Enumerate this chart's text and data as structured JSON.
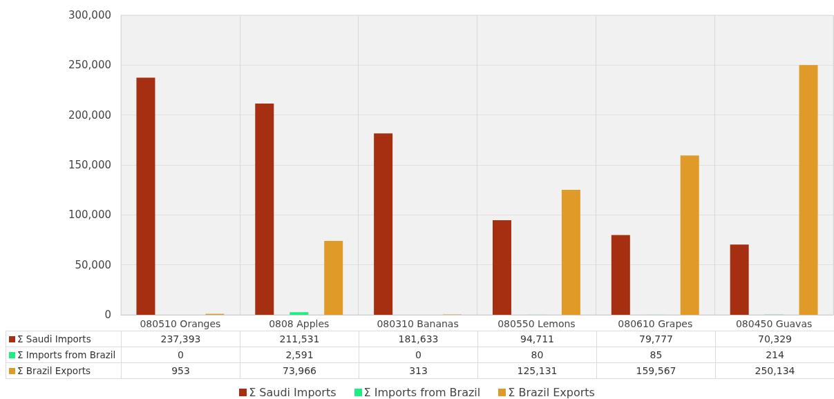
{
  "chart_data": {
    "type": "bar",
    "categories": [
      "080510 Oranges",
      "0808 Apples",
      "080310 Bananas",
      "080550 Lemons",
      "080610 Grapes",
      "080450 Guavas"
    ],
    "series": [
      {
        "name": "Σ Saudi Imports",
        "color": "#a52f10",
        "values": [
          237393,
          211531,
          181633,
          94711,
          79777,
          70329
        ],
        "value_labels": [
          "237,393",
          "211,531",
          "181,633",
          "94,711",
          "79,777",
          "70,329"
        ]
      },
      {
        "name": "Σ Imports from Brazil",
        "color": "#19f07f",
        "values": [
          0,
          2591,
          0,
          80,
          85,
          214
        ],
        "value_labels": [
          "0",
          "2,591",
          "0",
          "80",
          "85",
          "214"
        ]
      },
      {
        "name": "Σ Brazil Exports",
        "color": "#e09a28",
        "values": [
          953,
          73966,
          313,
          125131,
          159567,
          250134
        ],
        "value_labels": [
          "953",
          "73,966",
          "313",
          "125,131",
          "159,567",
          "250,134"
        ]
      }
    ],
    "ylim": [
      0,
      300000
    ],
    "yticks": [
      0,
      {
        "value": 50000,
        "label": "50,000"
      },
      {
        "value": 100000,
        "label": "100,000"
      },
      {
        "value": 150000,
        "label": "150,000"
      },
      {
        "value": 200000,
        "label": "200,000"
      },
      {
        "value": 250000,
        "label": "250,000"
      },
      {
        "value": 300000,
        "label": "300,000"
      }
    ],
    "grid": true,
    "legend": "bottom"
  }
}
